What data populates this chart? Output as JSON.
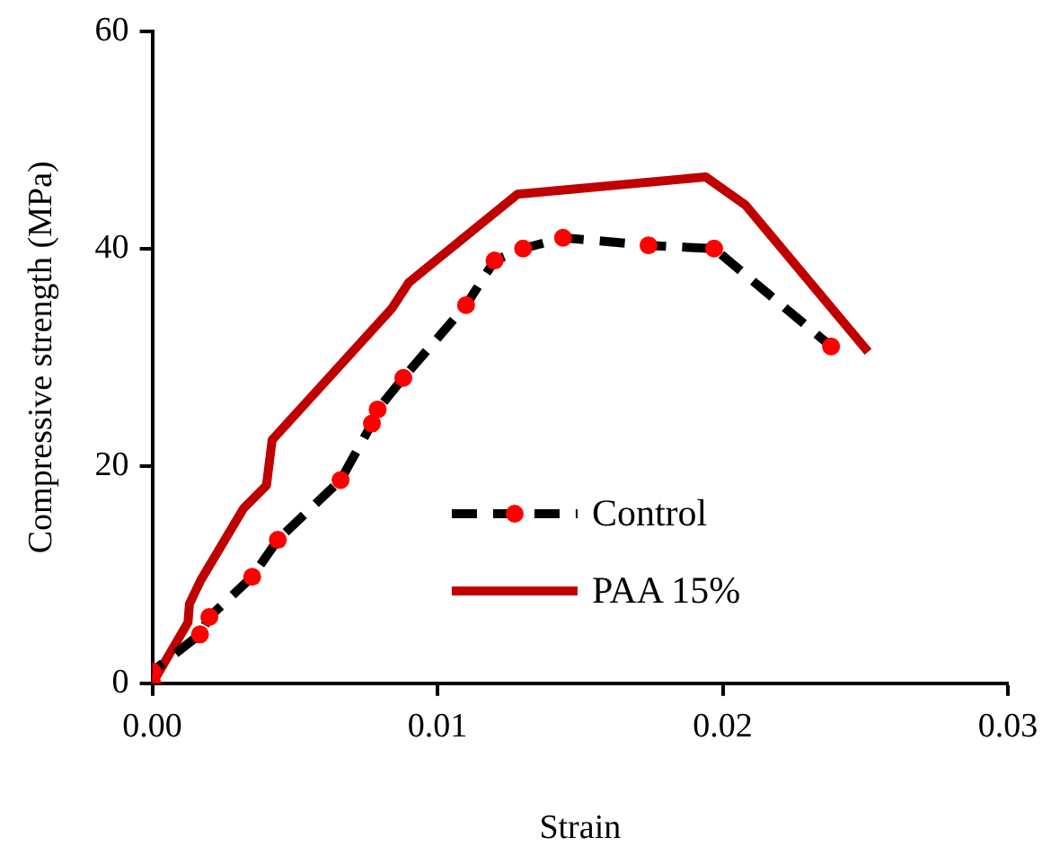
{
  "chart_data": {
    "type": "line",
    "xlabel": "Strain",
    "ylabel": "Compressive strength (MPa)",
    "xlim": [
      0,
      0.03
    ],
    "xticks": [
      {
        "value": 0,
        "label": "0.00"
      },
      {
        "value": 0.01,
        "label": "0.01"
      },
      {
        "value": 0.02,
        "label": "0.02"
      },
      {
        "value": 0.03,
        "label": "0.03"
      }
    ],
    "ylim": [
      0,
      60
    ],
    "yticks": [
      0,
      20,
      40,
      60
    ],
    "grid": false,
    "legend": "bottom right",
    "series": [
      {
        "name": "Control",
        "color": "#000000",
        "line_style": "dashed",
        "marker": "circle",
        "colors": [
          "#ff0000",
          "#ff0000",
          "#ff0000",
          "#ff0000",
          "#ff0000",
          "#ff0000",
          "#ff0000",
          "#ff0000",
          "#ff0000",
          "#ff0000",
          "#ff0000",
          "#ff0000",
          "#ff0000",
          "#ff0000",
          "#ff0000",
          "#ff0000",
          "#ff0000"
        ],
        "x": [
          0,
          0,
          0.00167,
          0.002,
          0.0035,
          0.0044,
          0.0066,
          0.0077,
          0.0079,
          0.0088,
          0.011,
          0.012,
          0.013,
          0.0144,
          0.0174,
          0.0197,
          0.0238
        ],
        "values": [
          0,
          1.1,
          4.5,
          6.1,
          9.8,
          13.2,
          18.7,
          23.9,
          25.2,
          28.1,
          34.8,
          38.9,
          40.0,
          41.0,
          40.3,
          40.0,
          31.0
        ]
      },
      {
        "name": "PAA 15%",
        "color": "#c00000",
        "line_style": "solid",
        "marker": "none",
        "x": [
          0,
          0.00125,
          0.0013,
          0.0017,
          0.0032,
          0.004,
          0.0042,
          0.0084,
          0.009,
          0.0128,
          0.0194,
          0.0208,
          0.0251
        ],
        "values": [
          0,
          5.6,
          7.3,
          9.5,
          16.1,
          18.2,
          22.4,
          34.5,
          36.9,
          45.0,
          46.6,
          44.0,
          30.5
        ]
      }
    ]
  }
}
